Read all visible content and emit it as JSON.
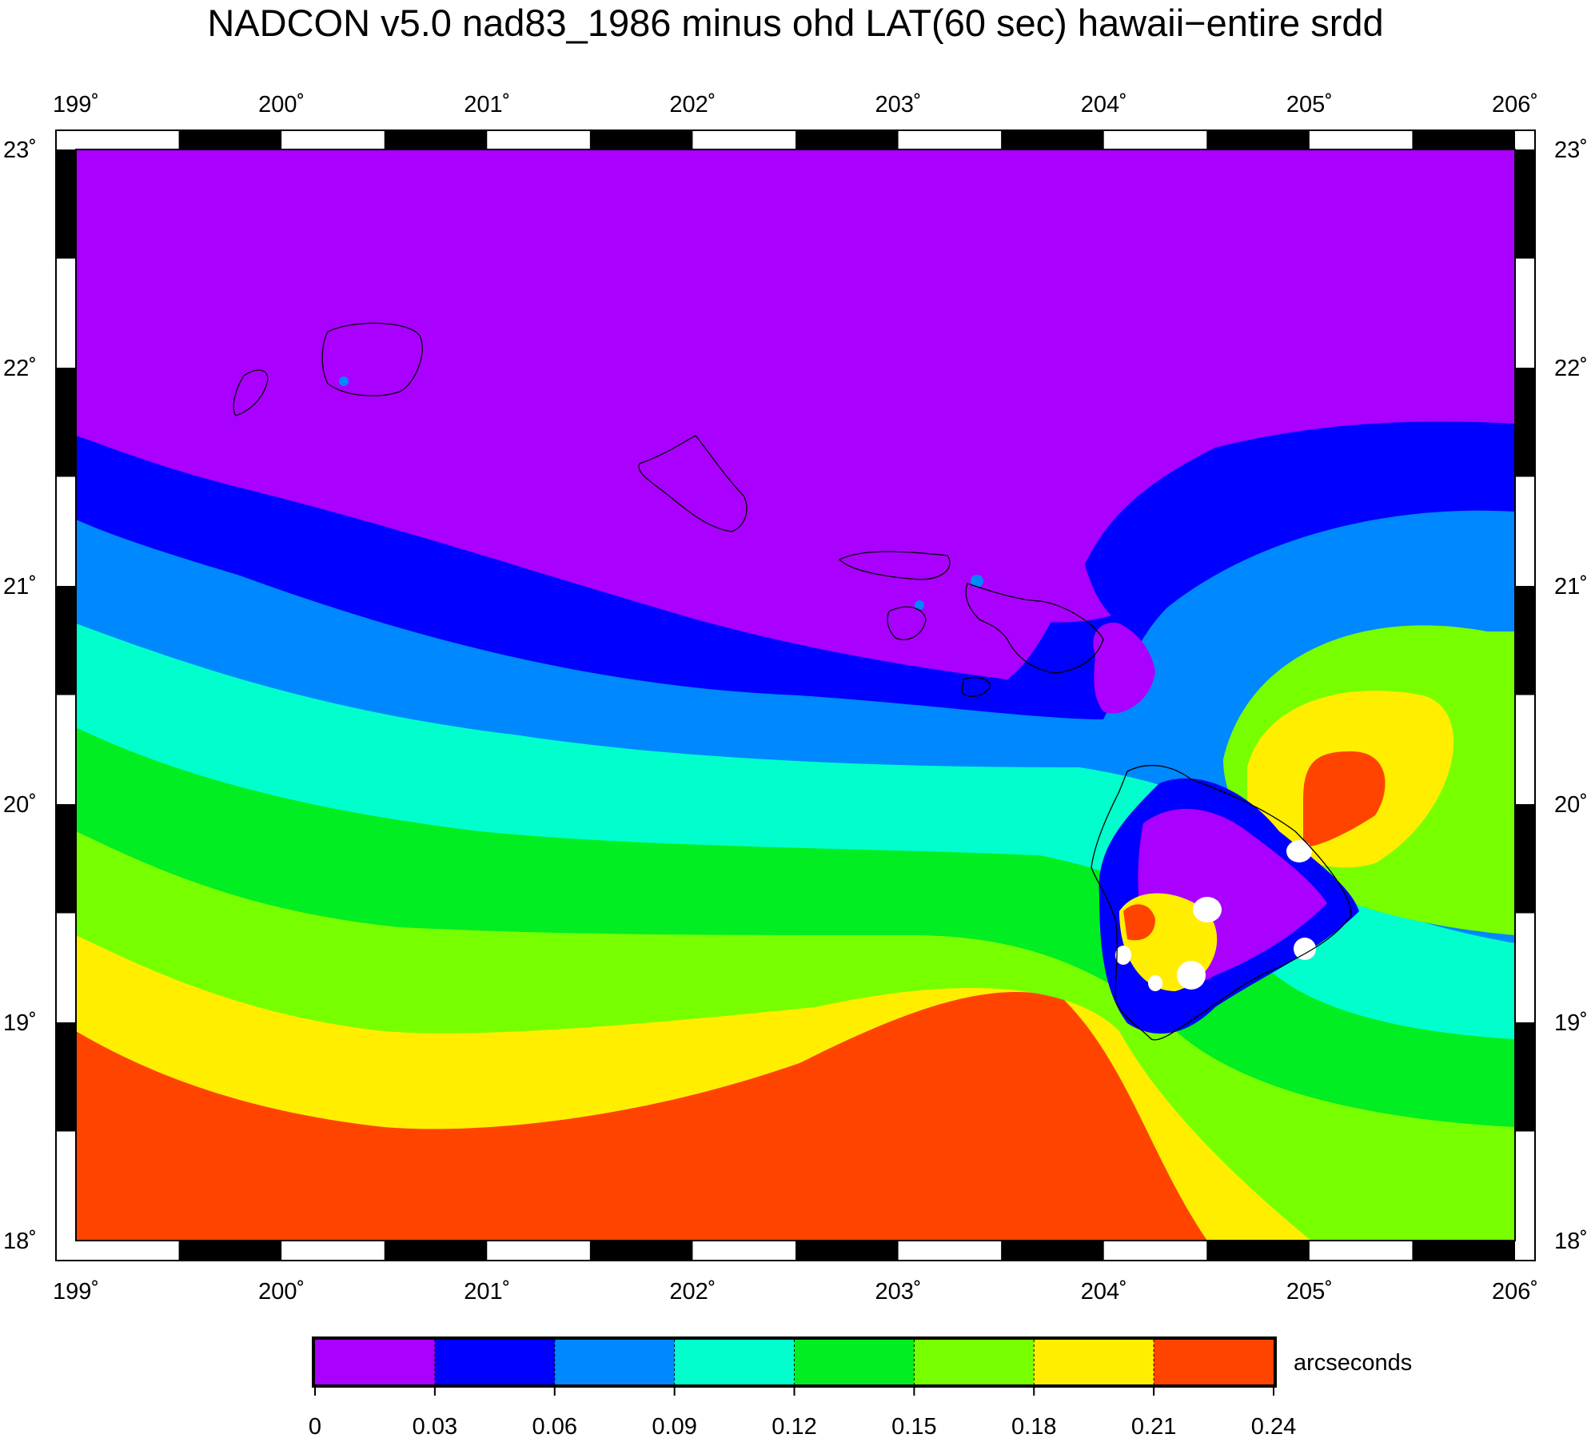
{
  "title": "NADCON v5.0 nad83_1986 minus ohd LAT(60 sec) hawaii−entire srdd",
  "map": {
    "lon_ticks": [
      199,
      200,
      201,
      202,
      203,
      204,
      205,
      206
    ],
    "lat_ticks": [
      23,
      22,
      21,
      20,
      19,
      18
    ],
    "lon_labels": [
      "199˚",
      "200˚",
      "201˚",
      "202˚",
      "203˚",
      "204˚",
      "205˚",
      "206˚"
    ],
    "lat_labels": [
      "23˚",
      "22˚",
      "21˚",
      "20˚",
      "19˚",
      "18˚"
    ],
    "lon_range": [
      199,
      206
    ],
    "lat_range": [
      18,
      23
    ]
  },
  "legend": {
    "unit": "arcseconds",
    "tick_labels": [
      "0",
      "0.03",
      "0.06",
      "0.09",
      "0.12",
      "0.15",
      "0.18",
      "0.21",
      "0.24"
    ],
    "colors": [
      "#aa00ff",
      "#0000ff",
      "#0088ff",
      "#00ffcc",
      "#00ee22",
      "#77ff00",
      "#ffee00",
      "#ff4400"
    ]
  },
  "colors": {
    "band_0": "#aa00ff",
    "band_1": "#0000ff",
    "band_2": "#0088ff",
    "band_3": "#00ffcc",
    "band_4": "#00ee22",
    "band_5": "#77ff00",
    "band_6": "#ffee00",
    "band_7": "#ff4400",
    "above_max": "#ffffff"
  }
}
